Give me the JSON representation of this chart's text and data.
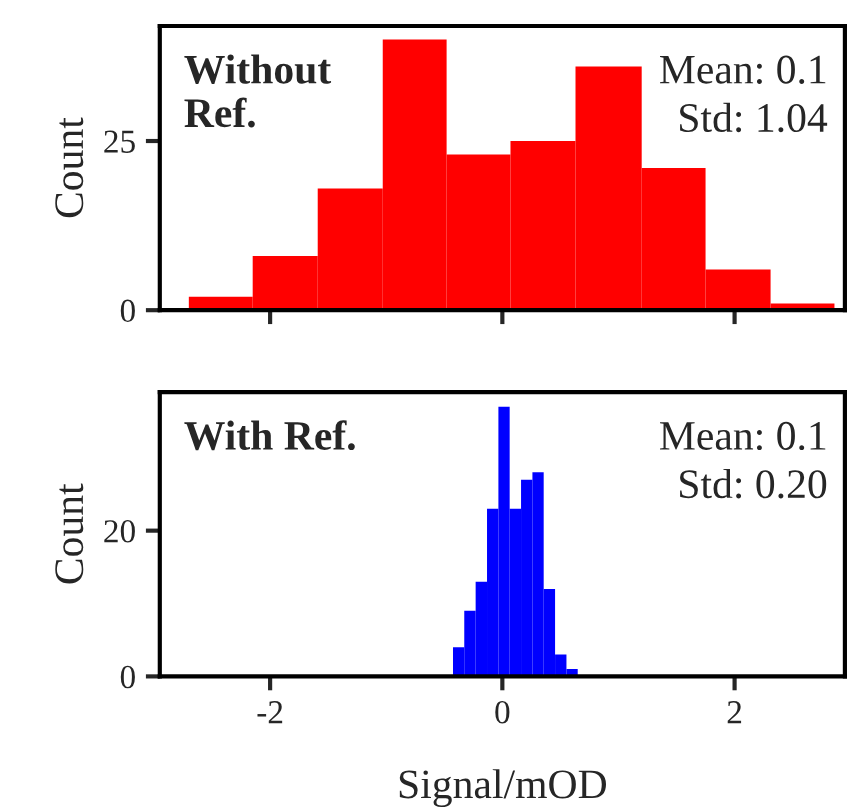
{
  "chart_data": [
    {
      "type": "histogram",
      "title": "Without\nRef.",
      "ylabel": "Count",
      "color": "#ff0000",
      "bins": [
        -2.7,
        -2.15,
        -1.59,
        -1.03,
        -0.48,
        0.07,
        0.63,
        1.2,
        1.75,
        2.31,
        2.86
      ],
      "values": [
        2,
        8,
        18,
        40,
        23,
        25,
        36,
        21,
        6,
        1
      ],
      "xlim": [
        -2.95,
        2.95
      ],
      "xticks": [
        {
          "value": -2,
          "label": null
        },
        {
          "value": 0,
          "label": null
        },
        {
          "value": 2,
          "label": null
        }
      ],
      "ylim": [
        0,
        42
      ],
      "yticks": [
        0,
        25
      ],
      "tick_labels": "y",
      "grid": false,
      "annotations": [
        "Mean: 0.1",
        "Std: 1.04"
      ]
    },
    {
      "type": "histogram",
      "title": "With Ref.",
      "ylabel": "Count",
      "xlabel": "Signal/mOD",
      "color": "#0000ff",
      "bins": [
        -0.425,
        -0.328,
        -0.23,
        -0.132,
        -0.034,
        0.063,
        0.161,
        0.259,
        0.356,
        0.454,
        0.552,
        0.649
      ],
      "values": [
        4,
        9,
        13,
        23,
        37,
        23,
        27,
        28,
        12,
        3,
        1
      ],
      "xlim": [
        -2.95,
        2.95
      ],
      "xticks": [
        -2,
        0,
        2
      ],
      "ylim": [
        0,
        39
      ],
      "yticks": [
        0,
        20
      ],
      "grid": false,
      "annotations": [
        "Mean: 0.1",
        "Std: 0.20"
      ]
    }
  ]
}
